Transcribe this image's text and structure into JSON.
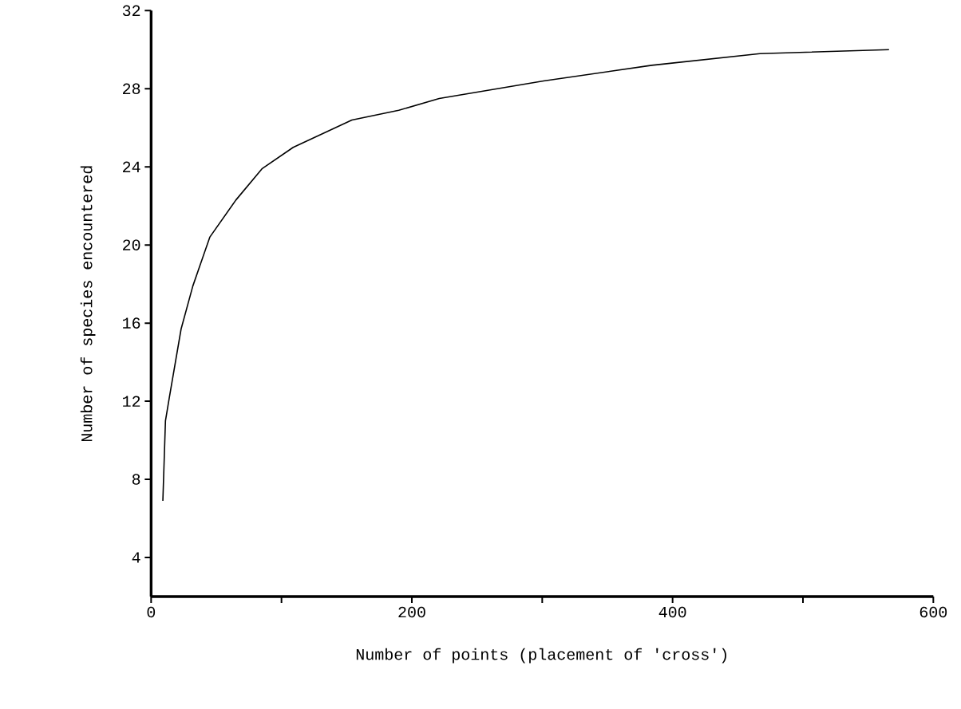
{
  "chart_data": {
    "type": "line",
    "xlabel": "Number of points (placement of 'cross')",
    "ylabel": "Number of species encountered",
    "x": [
      9,
      11,
      14,
      23,
      32,
      45,
      65,
      85,
      109,
      154,
      190,
      221,
      301,
      384,
      467,
      566
    ],
    "series": [
      {
        "color": "#000000",
        "values": [
          6.9,
          11.0,
          12.2,
          15.7,
          17.9,
          20.4,
          22.3,
          23.9,
          25.0,
          26.4,
          26.9,
          27.5,
          28.4,
          29.2,
          29.8,
          30.0
        ]
      }
    ],
    "xlim": [
      0,
      600
    ],
    "xticks": [
      0,
      {
        "value": 100,
        "label": null
      },
      200,
      {
        "value": 300,
        "label": null
      },
      400,
      {
        "value": 500,
        "label": null
      },
      600
    ],
    "ylim": [
      2,
      32
    ],
    "yticks": [
      4,
      8,
      12,
      16,
      20,
      24,
      28,
      32
    ],
    "grid": false,
    "marker": "none",
    "line_style": "solid"
  }
}
